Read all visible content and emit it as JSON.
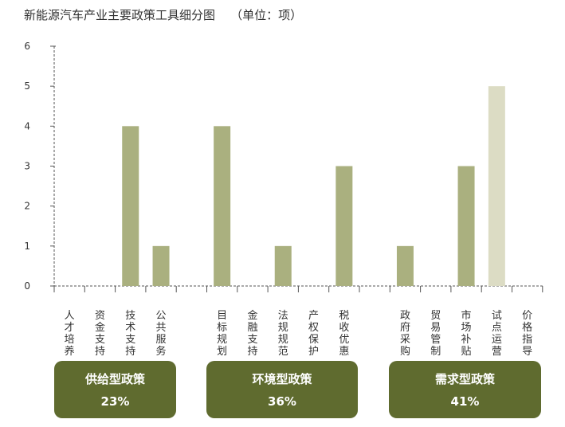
{
  "title": "新能源汽车产业主要政策工具细分图",
  "unit": "（单位：项）",
  "chart_data": {
    "type": "bar",
    "title": "新能源汽车产业主要政策工具细分图",
    "ylim": [
      0,
      6
    ],
    "yticks": [
      "0",
      "1",
      "2",
      "3",
      "4",
      "5",
      "6"
    ],
    "categories": [
      "人才培养",
      "资金支持",
      "技术支持",
      "公共服务",
      "目标规划",
      "金融支持",
      "法规规范",
      "产权保护",
      "税收优惠",
      "政府采购",
      "贸易管制",
      "市场补贴",
      "试点运营",
      "价格指导"
    ],
    "values": [
      0,
      0,
      4,
      1,
      4,
      0,
      1,
      0,
      3,
      1,
      0,
      3,
      5,
      0
    ],
    "groups": [
      {
        "name": "供给型政策",
        "percent": "23%",
        "categories": [
          "人才培养",
          "资金支持",
          "技术支持",
          "公共服务"
        ]
      },
      {
        "name": "环境型政策",
        "percent": "36%",
        "categories": [
          "目标规划",
          "金融支持",
          "法规规范",
          "产权保护",
          "税收优惠"
        ]
      },
      {
        "name": "需求型政策",
        "percent": "41%",
        "categories": [
          "政府采购",
          "贸易管制",
          "市场补贴",
          "试点运营",
          "价格指导"
        ]
      }
    ],
    "grid": false,
    "colors": {
      "bar": "#aab07f",
      "highlight": "#dcdcc4",
      "group_box": "#5f6b2f",
      "axis": "#555555"
    }
  }
}
